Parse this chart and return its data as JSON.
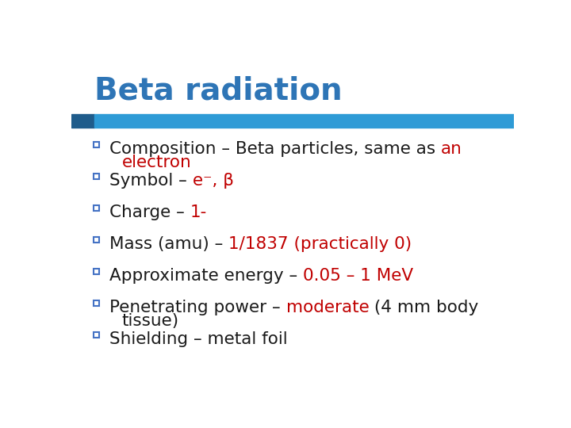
{
  "title": "Beta radiation",
  "title_color": "#2E75B6",
  "bar_color": "#2E9BD6",
  "bar_left_color": "#1F5C8B",
  "background_color": "#FFFFFF",
  "text_color_black": "#1A1A1A",
  "text_color_red": "#C00000",
  "bullet_color": "#4472C4",
  "title_fontsize": 28,
  "body_fontsize": 15.5,
  "items": [
    {
      "lines": [
        [
          {
            "text": "Composition – Beta particles, same as ",
            "color": "#1A1A1A"
          },
          {
            "text": "an",
            "color": "#C00000"
          }
        ],
        [
          {
            "text": "electron",
            "color": "#C00000",
            "indent": true
          }
        ]
      ]
    },
    {
      "lines": [
        [
          {
            "text": "Symbol – ",
            "color": "#1A1A1A"
          },
          {
            "text": "e⁻, β",
            "color": "#C00000"
          }
        ]
      ]
    },
    {
      "lines": [
        [
          {
            "text": "Charge – ",
            "color": "#1A1A1A"
          },
          {
            "text": "1-",
            "color": "#C00000"
          }
        ]
      ]
    },
    {
      "lines": [
        [
          {
            "text": "Mass (amu) – ",
            "color": "#1A1A1A"
          },
          {
            "text": "1/1837 (practically 0)",
            "color": "#C00000"
          }
        ]
      ]
    },
    {
      "lines": [
        [
          {
            "text": "Approximate energy – ",
            "color": "#1A1A1A"
          },
          {
            "text": "0.05 – 1 MeV",
            "color": "#C00000"
          }
        ]
      ]
    },
    {
      "lines": [
        [
          {
            "text": "Penetrating power – ",
            "color": "#1A1A1A"
          },
          {
            "text": "moderate",
            "color": "#C00000"
          },
          {
            "text": " (4 mm body",
            "color": "#1A1A1A"
          }
        ],
        [
          {
            "text": "tissue)",
            "color": "#1A1A1A",
            "indent": true
          }
        ]
      ]
    },
    {
      "lines": [
        [
          {
            "text": "Shielding – metal foil",
            "color": "#1A1A1A"
          }
        ]
      ]
    }
  ]
}
